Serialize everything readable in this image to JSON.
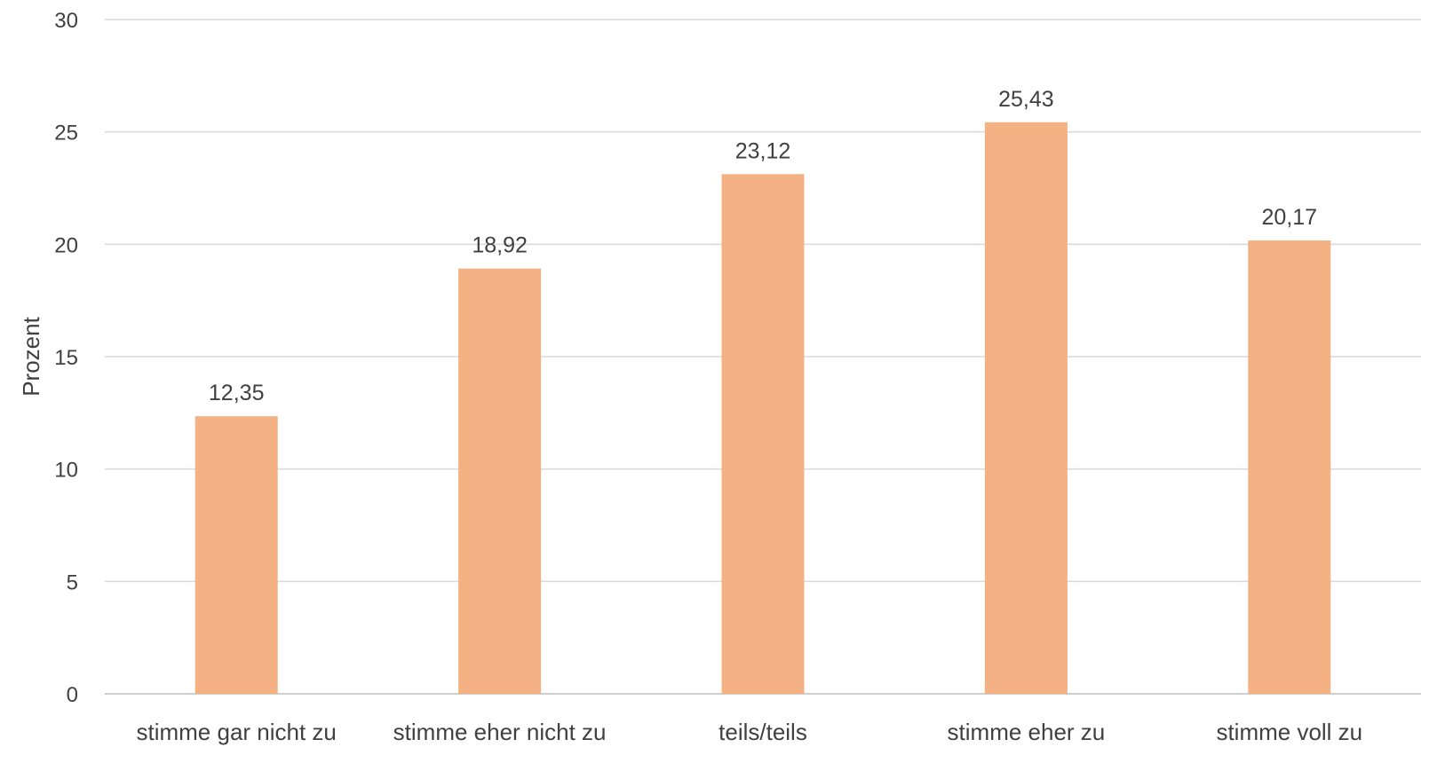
{
  "chart_data": {
    "type": "bar",
    "categories": [
      "stimme gar nicht zu",
      "stimme eher nicht zu",
      "teils/teils",
      "stimme eher zu",
      "stimme voll zu"
    ],
    "values": [
      12.35,
      18.92,
      23.12,
      25.43,
      20.17
    ],
    "data_labels": [
      "12,35",
      "18,92",
      "23,12",
      "25,43",
      "20,17"
    ],
    "yticks": [
      "0",
      "5",
      "10",
      "15",
      "20",
      "25",
      "30"
    ],
    "ylabel": "Prozent",
    "xlabel": "",
    "title": "",
    "ylim": [
      0,
      30
    ],
    "grid": true,
    "legend": "none",
    "bar_color": "#f4b183",
    "grid_color": "#d9d9d9",
    "text_color": "#404040"
  }
}
